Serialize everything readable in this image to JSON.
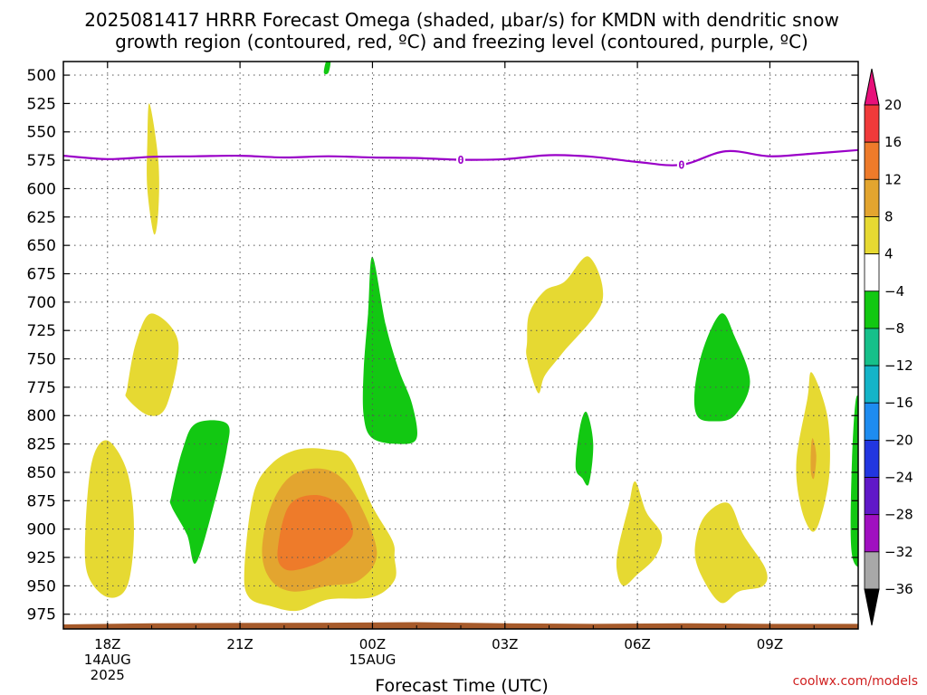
{
  "chart_data": {
    "type": "contour",
    "title_line1": "2025081417 HRRR Forecast Omega (shaded, μbar/s) for KMDN with dendritic snow",
    "title_line2": "growth region (contoured, red, ºC) and freezing level (contoured, purple, ºC)",
    "xlabel": "Forecast Time (UTC)",
    "credit": "coolwx.com/models",
    "y_axis": {
      "type": "pressure",
      "unit": "hPa",
      "range": [
        488,
        988
      ],
      "ticks": [
        500,
        525,
        550,
        575,
        600,
        625,
        650,
        675,
        700,
        725,
        750,
        775,
        800,
        825,
        850,
        875,
        900,
        925,
        950,
        975
      ]
    },
    "x_axis": {
      "unit": "forecast hour",
      "range": [
        -1,
        17
      ],
      "ticks": [
        {
          "hour": 0,
          "label": [
            "18Z",
            "14AUG",
            "2025"
          ]
        },
        {
          "hour": 3,
          "label": [
            "21Z"
          ]
        },
        {
          "hour": 6,
          "label": [
            "00Z",
            "15AUG"
          ]
        },
        {
          "hour": 9,
          "label": [
            "03Z"
          ]
        },
        {
          "hour": 12,
          "label": [
            "06Z"
          ]
        },
        {
          "hour": 15,
          "label": [
            "09Z"
          ]
        }
      ]
    },
    "colorbar": {
      "labels": [
        "20",
        "16",
        "12",
        "8",
        "4",
        "−4",
        "−8",
        "−12",
        "−16",
        "−20",
        "−24",
        "−28",
        "−32",
        "−36"
      ],
      "levels": [
        {
          "from": 16,
          "to": 20,
          "color": "#f03a3a"
        },
        {
          "from": 12,
          "to": 16,
          "color": "#ee7b2a"
        },
        {
          "from": 8,
          "to": 12,
          "color": "#e3a52f"
        },
        {
          "from": 4,
          "to": 8,
          "color": "#e6d932"
        },
        {
          "from": -4,
          "to": 4,
          "color": "#ffffff"
        },
        {
          "from": -8,
          "to": -4,
          "color": "#12c812"
        },
        {
          "from": -12,
          "to": -8,
          "color": "#16c08a"
        },
        {
          "from": -16,
          "to": -12,
          "color": "#14b4c8"
        },
        {
          "from": -20,
          "to": -16,
          "color": "#1e8cf0"
        },
        {
          "from": -24,
          "to": -20,
          "color": "#2236e0"
        },
        {
          "from": -28,
          "to": -24,
          "color": "#6018c8"
        },
        {
          "from": -32,
          "to": -28,
          "color": "#a010c0"
        },
        {
          "from": -36,
          "to": -32,
          "color": "#a8a8a8"
        }
      ],
      "over_color": "#e8107a",
      "under_color": "#000000"
    },
    "freezing_level": {
      "contour_value": "0",
      "color": "#9a00c8",
      "points": [
        [
          -1,
          571
        ],
        [
          0,
          574
        ],
        [
          1,
          572
        ],
        [
          2,
          571.5
        ],
        [
          3,
          571
        ],
        [
          4,
          572.5
        ],
        [
          5,
          571.5
        ],
        [
          6,
          572.5
        ],
        [
          7,
          573
        ],
        [
          8,
          574.5
        ],
        [
          9,
          574
        ],
        [
          10,
          570.5
        ],
        [
          11,
          572
        ],
        [
          12,
          576.5
        ],
        [
          13,
          579
        ],
        [
          14,
          567
        ],
        [
          15,
          571.5
        ],
        [
          16,
          569
        ],
        [
          17,
          566
        ]
      ],
      "label_hours": [
        8,
        13
      ]
    },
    "omega_regions": [
      {
        "value": 6,
        "points": [
          [
            0.95,
            525
          ],
          [
            1.15,
            575
          ],
          [
            1.15,
            620
          ],
          [
            1.05,
            640
          ],
          [
            0.9,
            600
          ],
          [
            0.9,
            560
          ]
        ]
      },
      {
        "value": -6,
        "points": [
          [
            4.9,
            498
          ],
          [
            4.95,
            488
          ],
          [
            5.05,
            488
          ],
          [
            5.0,
            498
          ]
        ]
      },
      {
        "value": 6,
        "points": [
          [
            0.45,
            775
          ],
          [
            0.65,
            735
          ],
          [
            1.0,
            710
          ],
          [
            1.6,
            735
          ],
          [
            1.35,
            790
          ],
          [
            0.95,
            800
          ],
          [
            0.45,
            785
          ]
        ]
      },
      {
        "value": 6,
        "points": [
          [
            -0.5,
            900
          ],
          [
            -0.35,
            840
          ],
          [
            0,
            822
          ],
          [
            0.45,
            850
          ],
          [
            0.6,
            900
          ],
          [
            0.45,
            950
          ],
          [
            0,
            960
          ],
          [
            -0.45,
            940
          ]
        ]
      },
      {
        "value": -6,
        "points": [
          [
            1.45,
            870
          ],
          [
            1.7,
            830
          ],
          [
            2.0,
            807
          ],
          [
            2.7,
            807
          ],
          [
            2.7,
            830
          ],
          [
            2.4,
            880
          ],
          [
            2.0,
            930
          ],
          [
            1.8,
            905
          ],
          [
            1.45,
            880
          ]
        ]
      },
      {
        "value": 6,
        "points": [
          [
            3.1,
            935
          ],
          [
            3.3,
            870
          ],
          [
            3.7,
            843
          ],
          [
            4.3,
            830
          ],
          [
            5.0,
            830
          ],
          [
            5.5,
            838
          ],
          [
            6.0,
            880
          ],
          [
            6.45,
            910
          ],
          [
            6.5,
            925
          ],
          [
            6.5,
            945
          ],
          [
            6.0,
            960
          ],
          [
            5.0,
            962
          ],
          [
            4.3,
            972
          ],
          [
            3.7,
            968
          ],
          [
            3.2,
            960
          ]
        ]
      },
      {
        "value": 10,
        "points": [
          [
            3.5,
            920
          ],
          [
            3.7,
            880
          ],
          [
            4.2,
            852
          ],
          [
            5.0,
            848
          ],
          [
            5.6,
            870
          ],
          [
            6.1,
            920
          ],
          [
            5.7,
            945
          ],
          [
            5.0,
            950
          ],
          [
            4.2,
            955
          ],
          [
            3.7,
            945
          ]
        ]
      },
      {
        "value": 14,
        "points": [
          [
            3.85,
            920
          ],
          [
            4.1,
            880
          ],
          [
            4.7,
            870
          ],
          [
            5.3,
            880
          ],
          [
            5.55,
            905
          ],
          [
            5.0,
            925
          ],
          [
            4.4,
            935
          ],
          [
            4.0,
            935
          ]
        ]
      },
      {
        "value": -6,
        "points": [
          [
            5.8,
            760
          ],
          [
            5.9,
            710
          ],
          [
            6.0,
            660
          ],
          [
            6.3,
            720
          ],
          [
            6.6,
            760
          ],
          [
            6.9,
            790
          ],
          [
            7.0,
            820
          ],
          [
            6.6,
            825
          ],
          [
            6.0,
            820
          ],
          [
            5.8,
            800
          ]
        ]
      },
      {
        "value": 6,
        "points": [
          [
            9.5,
            735
          ],
          [
            9.55,
            710
          ],
          [
            9.9,
            690
          ],
          [
            10.35,
            682
          ],
          [
            10.9,
            660
          ],
          [
            11.2,
            700
          ],
          [
            10.3,
            745
          ],
          [
            9.9,
            765
          ],
          [
            9.75,
            780
          ],
          [
            9.5,
            750
          ]
        ]
      },
      {
        "value": -6,
        "points": [
          [
            10.6,
            845
          ],
          [
            10.7,
            810
          ],
          [
            10.85,
            797
          ],
          [
            11.0,
            825
          ],
          [
            10.9,
            860
          ],
          [
            10.75,
            855
          ]
        ]
      },
      {
        "value": 6,
        "points": [
          [
            11.55,
            920
          ],
          [
            11.8,
            880
          ],
          [
            11.95,
            858
          ],
          [
            12.2,
            885
          ],
          [
            12.55,
            905
          ],
          [
            12.4,
            925
          ],
          [
            12.0,
            940
          ],
          [
            11.7,
            950
          ],
          [
            11.55,
            940
          ]
        ]
      },
      {
        "value": -6,
        "points": [
          [
            13.3,
            777
          ],
          [
            13.5,
            740
          ],
          [
            13.9,
            710
          ],
          [
            14.2,
            730
          ],
          [
            14.55,
            770
          ],
          [
            14.2,
            800
          ],
          [
            13.7,
            805
          ],
          [
            13.35,
            800
          ]
        ]
      },
      {
        "value": 6,
        "points": [
          [
            13.3,
            920
          ],
          [
            13.5,
            890
          ],
          [
            14.05,
            877
          ],
          [
            14.4,
            905
          ],
          [
            14.9,
            935
          ],
          [
            14.85,
            950
          ],
          [
            14.3,
            955
          ],
          [
            13.9,
            965
          ],
          [
            13.5,
            945
          ]
        ]
      },
      {
        "value": 6,
        "points": [
          [
            15.6,
            840
          ],
          [
            15.85,
            785
          ],
          [
            15.95,
            762
          ],
          [
            16.3,
            800
          ],
          [
            16.35,
            850
          ],
          [
            16.15,
            890
          ],
          [
            15.95,
            902
          ],
          [
            15.7,
            880
          ]
        ]
      },
      {
        "value": 10,
        "points": [
          [
            15.93,
            830
          ],
          [
            15.97,
            820
          ],
          [
            16.05,
            835
          ],
          [
            16.0,
            855
          ],
          [
            15.93,
            850
          ]
        ]
      },
      {
        "value": -6,
        "points": [
          [
            16.85,
            850
          ],
          [
            16.95,
            785
          ],
          [
            17.1,
            800
          ],
          [
            17.3,
            850
          ],
          [
            17.45,
            900
          ],
          [
            17.45,
            930
          ],
          [
            17.1,
            935
          ],
          [
            16.85,
            920
          ]
        ]
      }
    ],
    "terrain": {
      "color": "#a65a2a",
      "points": [
        [
          -1,
          984
        ],
        [
          1,
          983
        ],
        [
          5,
          982.5
        ],
        [
          7,
          982
        ],
        [
          9,
          983
        ],
        [
          11,
          983.5
        ],
        [
          13,
          983
        ],
        [
          15,
          983.5
        ],
        [
          17,
          983.5
        ]
      ]
    }
  }
}
